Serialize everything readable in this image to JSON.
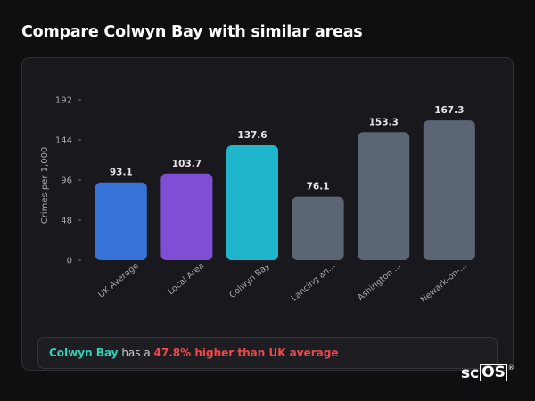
{
  "page": {
    "title": "Compare Colwyn Bay with similar areas"
  },
  "summary": {
    "area": "Colwyn Bay",
    "middle": " has a ",
    "highlight": "47.8% higher than UK average"
  },
  "logo": {
    "text_a": "sc",
    "text_b": "OS",
    "mark": "®"
  },
  "chart_data": {
    "type": "bar",
    "ylabel": "Crimes per 1,000",
    "xlabel": "",
    "ylim": [
      0,
      192
    ],
    "yticks": [
      0,
      48,
      96,
      144,
      192
    ],
    "categories": [
      "UK Average",
      "Local Area",
      "Colwyn Bay",
      "Lancing an...",
      "Ashington ...",
      "Newark-on-..."
    ],
    "values": [
      93.1,
      103.7,
      137.6,
      76.1,
      153.3,
      167.3
    ],
    "value_labels": [
      "93.1",
      "103.7",
      "137.6",
      "76.1",
      "153.3",
      "167.3"
    ],
    "colors": [
      "#3672d8",
      "#7e4fd4",
      "#1fb6cc",
      "#5b6574",
      "#5b6574",
      "#5b6574"
    ],
    "grid": false,
    "legend": "none"
  }
}
